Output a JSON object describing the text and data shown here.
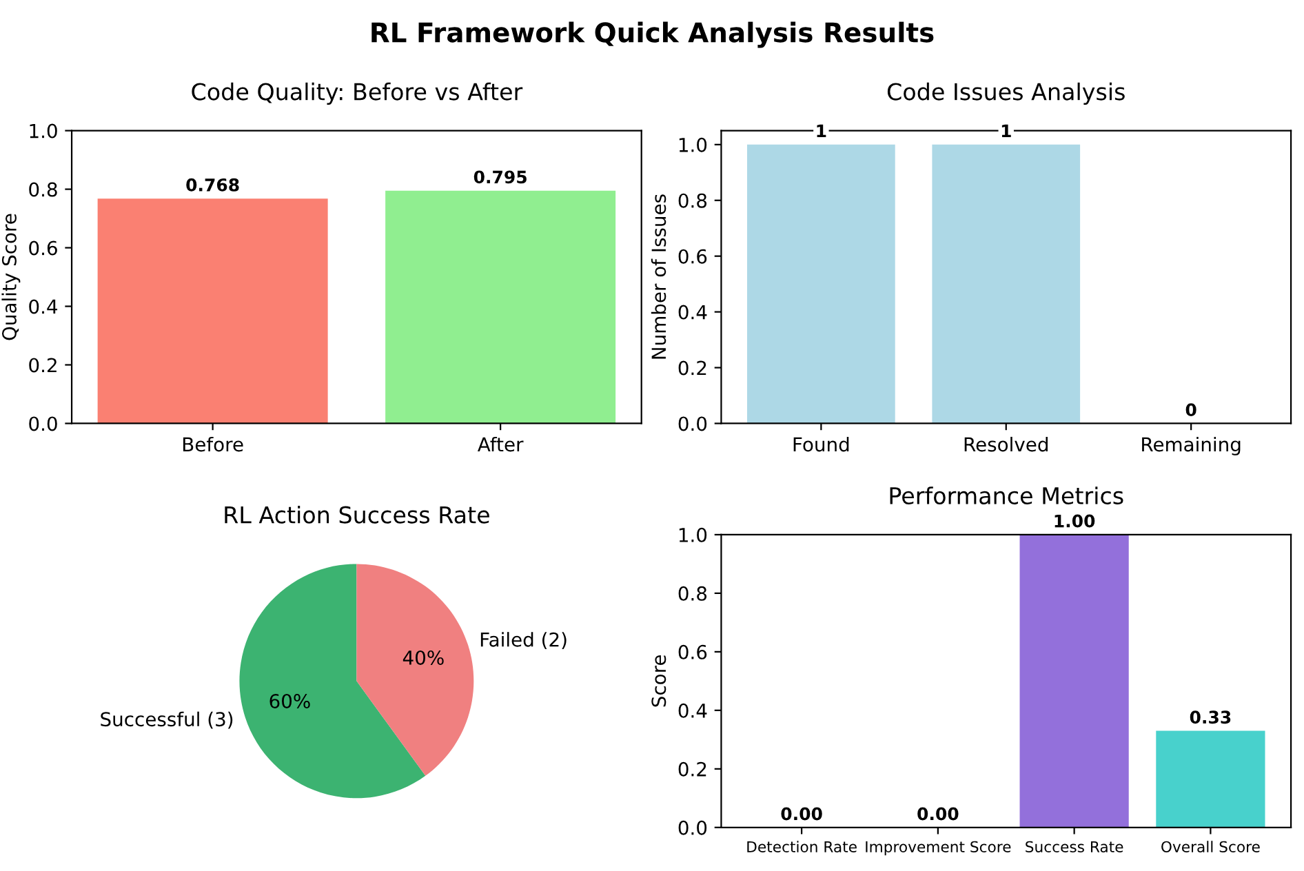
{
  "chart_data": [
    {
      "type": "bar",
      "title": "Code Quality: Before vs After",
      "ylabel": "Quality Score",
      "annotations": [
        "RL Framework Quick Analysis Results"
      ],
      "categories": [
        "Before",
        "After"
      ],
      "values": [
        0.768,
        0.795
      ],
      "colors": [
        "#fa8072",
        "#90ee90"
      ],
      "value_labels": [
        "0.768",
        "0.795"
      ],
      "ylim": [
        0,
        1
      ],
      "yticks": [
        {
          "value": 0,
          "label": "0.0"
        },
        {
          "value": 0.2,
          "label": "0.2"
        },
        {
          "value": 0.4,
          "label": "0.4"
        },
        {
          "value": 0.6,
          "label": "0.6"
        },
        {
          "value": 0.8,
          "label": "0.8"
        },
        {
          "value": 1,
          "label": "1.0"
        }
      ]
    },
    {
      "type": "bar",
      "title": "Code Issues Analysis",
      "ylabel": "Number of Issues",
      "categories": [
        "Found",
        "Resolved",
        "Remaining"
      ],
      "values": [
        1,
        1,
        0
      ],
      "colors": [
        "#add8e6",
        "#add8e6",
        "#add8e6"
      ],
      "value_labels": [
        "1",
        "1",
        "0"
      ],
      "ylim": [
        0,
        1.05
      ],
      "yticks": [
        {
          "value": 0,
          "label": "0.0"
        },
        {
          "value": 0.2,
          "label": "0.2"
        },
        {
          "value": 0.4,
          "label": "0.4"
        },
        {
          "value": 0.6,
          "label": "0.6"
        },
        {
          "value": 0.8,
          "label": "0.8"
        },
        {
          "value": 1,
          "label": "1.0"
        }
      ]
    },
    {
      "type": "pie",
      "title": "RL Action Success Rate",
      "categories": [
        "Successful (3)",
        "Failed (2)"
      ],
      "values": [
        60,
        40
      ],
      "colors": [
        "#3cb371",
        "#f08080"
      ],
      "value_labels": [
        "60%",
        "40%"
      ]
    },
    {
      "type": "bar",
      "title": "Performance Metrics",
      "ylabel": "Score",
      "categories": [
        "Detection Rate",
        "Improvement Score",
        "Success Rate",
        "Overall Score"
      ],
      "values": [
        0,
        0,
        1,
        0.33
      ],
      "colors": [
        "#ff6b6b",
        "#4ecdc4",
        "#9370db",
        "#48d1cc"
      ],
      "value_labels": [
        "0.00",
        "0.00",
        "1.00",
        "0.33"
      ],
      "ylim": [
        0,
        1
      ],
      "yticks": [
        {
          "value": 0,
          "label": "0.0"
        },
        {
          "value": 0.2,
          "label": "0.2"
        },
        {
          "value": 0.4,
          "label": "0.4"
        },
        {
          "value": 0.6,
          "label": "0.6"
        },
        {
          "value": 0.8,
          "label": "0.8"
        },
        {
          "value": 1,
          "label": "1.0"
        }
      ]
    }
  ]
}
